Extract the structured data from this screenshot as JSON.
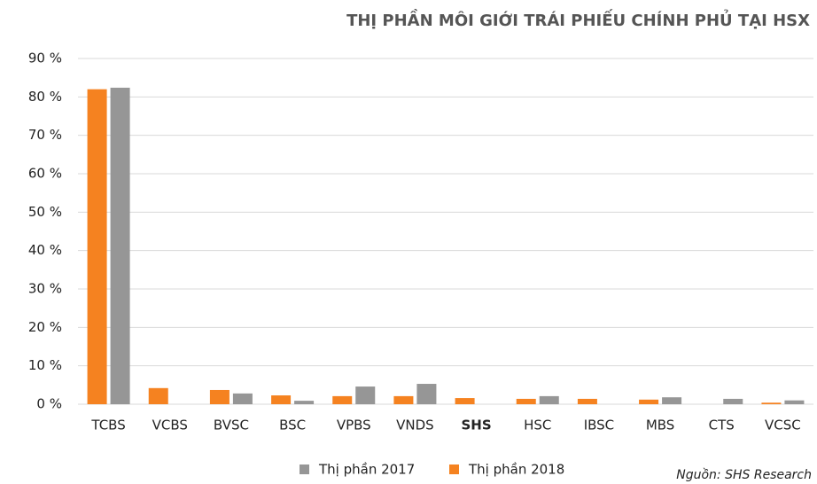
{
  "chart_data": {
    "type": "bar",
    "title": "THỊ PHẦN MÔI GIỚI TRÁI PHIẾU CHÍNH PHỦ TẠI HSX",
    "source": "Nguồn: SHS Research",
    "categories": [
      "TCBS",
      "VCBS",
      "BVSC",
      "BSC",
      "VPBS",
      "VNDS",
      "SHS",
      "HSC",
      "IBSC",
      "MBS",
      "CTS",
      "VCSC"
    ],
    "series": [
      {
        "name": "Thị phần 2018",
        "color": "#f58220",
        "values": [
          82,
          4.2,
          3.7,
          2.3,
          2.1,
          2.1,
          1.6,
          1.4,
          1.4,
          1.2,
          0,
          0.4
        ]
      },
      {
        "name": "Thị phần 2017",
        "color": "#969696",
        "values": [
          82.4,
          0,
          2.8,
          0.9,
          4.6,
          5.3,
          0,
          2.1,
          0,
          1.8,
          1.4,
          1.0
        ]
      }
    ],
    "ylim": [
      0,
      90
    ],
    "yticks": [
      {
        "value": 0,
        "label": "0 %"
      },
      {
        "value": 10,
        "label": "10 %"
      },
      {
        "value": 20,
        "label": "20 %"
      },
      {
        "value": 30,
        "label": "30 %"
      },
      {
        "value": 40,
        "label": "40 %"
      },
      {
        "value": 50,
        "label": "50 %"
      },
      {
        "value": 60,
        "label": "60 %"
      },
      {
        "value": 70,
        "label": "70 %"
      },
      {
        "value": 80,
        "label": "80 %"
      },
      {
        "value": 90,
        "label": "90 %"
      }
    ],
    "grid": true
  }
}
